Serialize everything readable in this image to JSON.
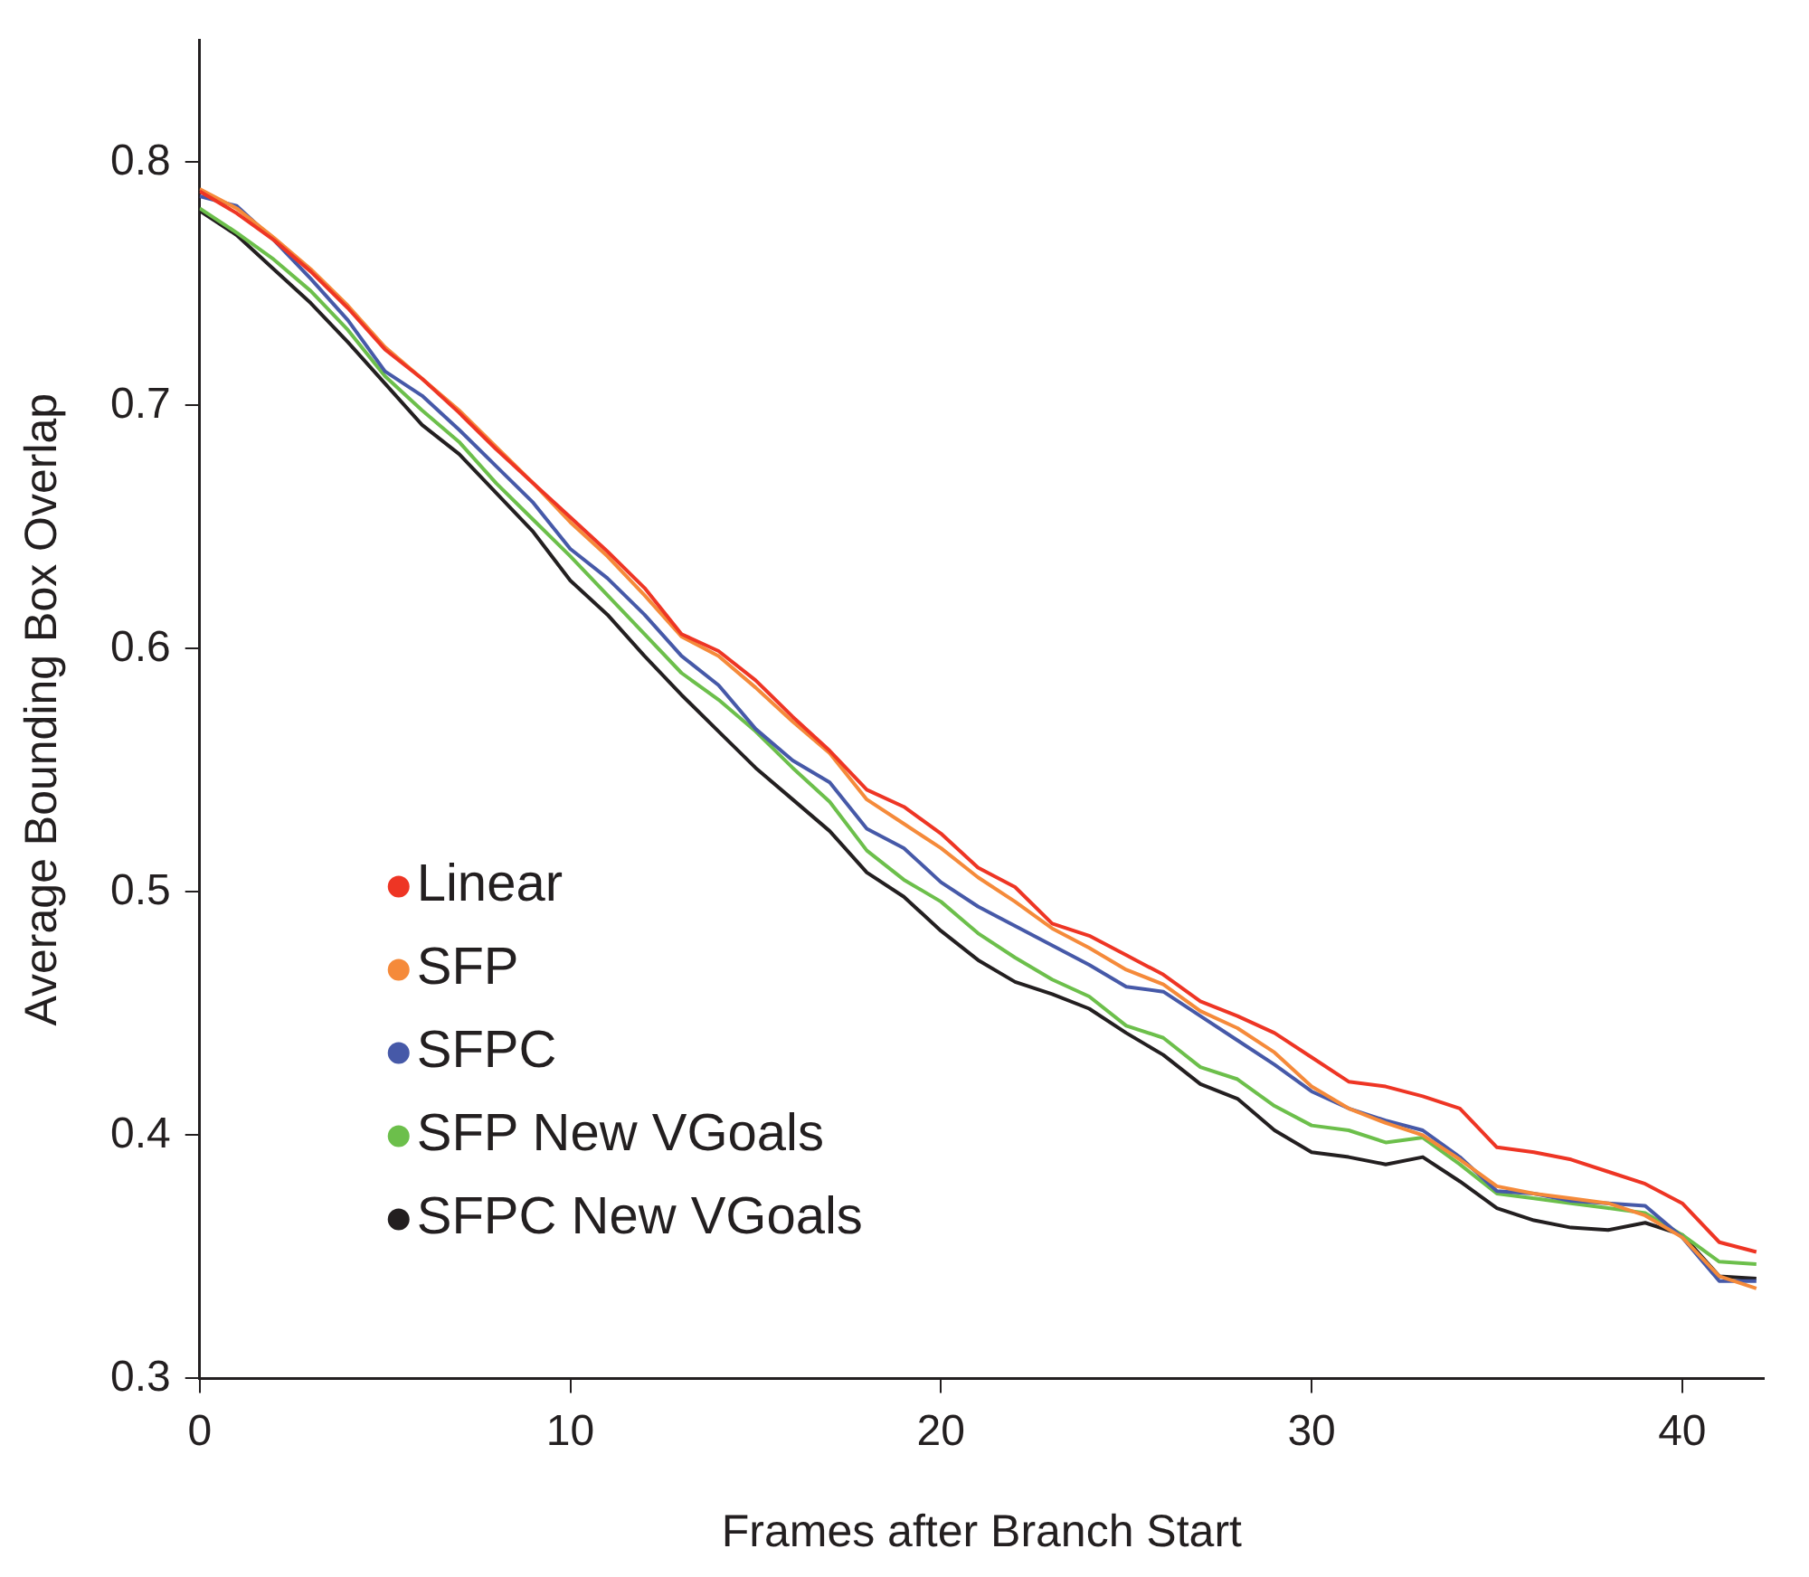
{
  "chart_data": {
    "type": "line",
    "xlabel": "Frames after Branch Start",
    "ylabel": "Average Bounding Box Overlap",
    "x": [
      0,
      1,
      2,
      3,
      4,
      5,
      6,
      7,
      8,
      9,
      10,
      11,
      12,
      13,
      14,
      15,
      16,
      17,
      18,
      19,
      20,
      21,
      22,
      23,
      24,
      25,
      26,
      27,
      28,
      29,
      30,
      31,
      32,
      33,
      34,
      35,
      36,
      37,
      38,
      39,
      40,
      41,
      42
    ],
    "xlim": [
      0,
      42.2
    ],
    "xticks": [
      0,
      10,
      20,
      30,
      40
    ],
    "ylim": [
      0.3,
      0.85
    ],
    "yticks": [
      {
        "value": 0.3,
        "label": "0.3"
      },
      {
        "value": 0.4,
        "label": "0.4"
      },
      {
        "value": 0.5,
        "label": "0.5"
      },
      {
        "value": 0.6,
        "label": "0.6"
      },
      {
        "value": 0.7,
        "label": "0.7"
      },
      {
        "value": 0.8,
        "label": "0.8"
      }
    ],
    "grid": false,
    "legend": "bottom left",
    "marker": "none",
    "line_style": "solid",
    "series": [
      {
        "name": "Linear",
        "color": "#ee3524",
        "values": [
          0.788,
          0.779,
          0.768,
          0.755,
          0.74,
          0.723,
          0.711,
          0.697,
          0.682,
          0.668,
          0.654,
          0.64,
          0.625,
          0.606,
          0.599,
          0.587,
          0.572,
          0.558,
          0.542,
          0.535,
          0.524,
          0.51,
          0.502,
          0.487,
          0.482,
          0.474,
          0.466,
          0.455,
          0.449,
          0.442,
          0.432,
          0.422,
          0.42,
          0.416,
          0.411,
          0.395,
          0.393,
          0.39,
          0.385,
          0.38,
          0.372,
          0.356,
          0.352
        ]
      },
      {
        "name": "SFP",
        "color": "#f58a3a",
        "values": [
          0.789,
          0.781,
          0.769,
          0.756,
          0.741,
          0.724,
          0.711,
          0.698,
          0.683,
          0.668,
          0.652,
          0.638,
          0.622,
          0.605,
          0.597,
          0.584,
          0.57,
          0.557,
          0.538,
          0.528,
          0.518,
          0.506,
          0.496,
          0.485,
          0.477,
          0.468,
          0.462,
          0.451,
          0.444,
          0.434,
          0.42,
          0.411,
          0.405,
          0.4,
          0.39,
          0.379,
          0.376,
          0.374,
          0.372,
          0.367,
          0.358,
          0.342,
          0.337
        ]
      },
      {
        "name": "SFPC",
        "color": "#4659a8",
        "values": [
          0.786,
          0.782,
          0.768,
          0.752,
          0.735,
          0.714,
          0.704,
          0.69,
          0.675,
          0.66,
          0.641,
          0.629,
          0.614,
          0.597,
          0.585,
          0.567,
          0.554,
          0.545,
          0.526,
          0.518,
          0.504,
          0.494,
          0.486,
          0.478,
          0.47,
          0.461,
          0.459,
          0.449,
          0.439,
          0.429,
          0.418,
          0.411,
          0.406,
          0.402,
          0.391,
          0.377,
          0.376,
          0.373,
          0.372,
          0.371,
          0.358,
          0.34,
          0.34
        ]
      },
      {
        "name": "SFP New VGoals",
        "color": "#6cbf4b",
        "values": [
          0.781,
          0.771,
          0.76,
          0.747,
          0.731,
          0.712,
          0.698,
          0.685,
          0.668,
          0.653,
          0.638,
          0.622,
          0.606,
          0.59,
          0.579,
          0.566,
          0.551,
          0.537,
          0.517,
          0.505,
          0.496,
          0.483,
          0.473,
          0.464,
          0.457,
          0.445,
          0.44,
          0.428,
          0.423,
          0.412,
          0.404,
          0.402,
          0.397,
          0.399,
          0.388,
          0.376,
          0.374,
          0.372,
          0.37,
          0.368,
          0.359,
          0.348,
          0.347
        ]
      },
      {
        "name": "SFPC New VGoals",
        "color": "#231f20",
        "values": [
          0.78,
          0.77,
          0.756,
          0.742,
          0.726,
          0.709,
          0.692,
          0.68,
          0.664,
          0.648,
          0.628,
          0.614,
          0.597,
          0.581,
          0.566,
          0.551,
          0.538,
          0.525,
          0.508,
          0.498,
          0.484,
          0.472,
          0.463,
          0.458,
          0.452,
          0.442,
          0.433,
          0.421,
          0.415,
          0.402,
          0.393,
          0.391,
          0.388,
          0.391,
          0.381,
          0.37,
          0.365,
          0.362,
          0.361,
          0.364,
          0.359,
          0.342,
          0.341
        ]
      }
    ]
  }
}
